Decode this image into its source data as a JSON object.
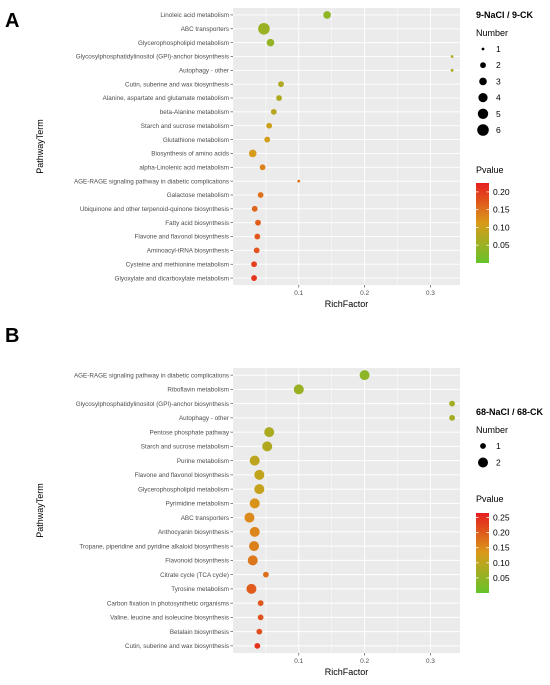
{
  "chart_data": [
    {
      "panel_label": "A",
      "type": "scatter",
      "title": "9-NaCl / 9-CK",
      "xlabel": "RichFactor",
      "ylabel": "PathwayTerm",
      "xticks": [
        0.1,
        0.2,
        0.3
      ],
      "xlim": [
        0.0,
        0.345
      ],
      "size_legend_title": "Number",
      "size_legend": [
        1,
        2,
        3,
        4,
        5,
        6
      ],
      "color_legend_title": "Pvalue",
      "color_ticks": [
        0.05,
        0.1,
        0.15,
        0.2
      ],
      "color_range": [
        0.0,
        0.225
      ],
      "grid": true,
      "legend_position": "right",
      "colors": {
        "low": "#66c32a",
        "mid": "#d99a1a",
        "high": "#e61e1e"
      },
      "points": [
        {
          "term": "Linoleic acid metabolism",
          "rich": 0.143,
          "number": 3,
          "pvalue": 0.04
        },
        {
          "term": "ABC transporters",
          "rich": 0.047,
          "number": 6,
          "pvalue": 0.05
        },
        {
          "term": "Glycerophospholipid metabolism",
          "rich": 0.057,
          "number": 3,
          "pvalue": 0.045
        },
        {
          "term": "Glycosylphosphatidylinositol (GPI)-anchor biosynthesis",
          "rich": 0.333,
          "number": 1,
          "pvalue": 0.07
        },
        {
          "term": "Autophagy - other",
          "rich": 0.333,
          "number": 1,
          "pvalue": 0.07
        },
        {
          "term": "Cutin, suberine and wax biosynthesis",
          "rich": 0.073,
          "number": 2,
          "pvalue": 0.07
        },
        {
          "term": "Alanine, aspartate and glutamate metabolism",
          "rich": 0.07,
          "number": 2,
          "pvalue": 0.072
        },
        {
          "term": "beta-Alanine metabolism",
          "rich": 0.062,
          "number": 2,
          "pvalue": 0.08
        },
        {
          "term": "Starch and sucrose metabolism",
          "rich": 0.055,
          "number": 2,
          "pvalue": 0.1
        },
        {
          "term": "Glutathione metabolism",
          "rich": 0.052,
          "number": 2,
          "pvalue": 0.105
        },
        {
          "term": "Biosynthesis of amino acids",
          "rich": 0.03,
          "number": 3,
          "pvalue": 0.11
        },
        {
          "term": "alpha-Linolenic acid metabolism",
          "rich": 0.045,
          "number": 2,
          "pvalue": 0.135
        },
        {
          "term": "AGE-RAGE signaling pathway in diabetic complications",
          "rich": 0.1,
          "number": 1,
          "pvalue": 0.15
        },
        {
          "term": "Galactose metabolism",
          "rich": 0.042,
          "number": 2,
          "pvalue": 0.15
        },
        {
          "term": "Ubiquinone and other terpenoid-quinone biosynthesis",
          "rich": 0.033,
          "number": 2,
          "pvalue": 0.16
        },
        {
          "term": "Fatty acid biosynthesis",
          "rich": 0.038,
          "number": 2,
          "pvalue": 0.17
        },
        {
          "term": "Flavone and flavonol biosynthesis",
          "rich": 0.037,
          "number": 2,
          "pvalue": 0.172
        },
        {
          "term": "Aminoacyl-tRNA biosynthesis",
          "rich": 0.036,
          "number": 2,
          "pvalue": 0.178
        },
        {
          "term": "Cysteine and methionine metabolism",
          "rich": 0.032,
          "number": 2,
          "pvalue": 0.195
        },
        {
          "term": "Glyoxylate and dicarboxylate metabolism",
          "rich": 0.032,
          "number": 2,
          "pvalue": 0.205
        }
      ]
    },
    {
      "panel_label": "B",
      "type": "scatter",
      "title": "68-NaCl / 68-CK",
      "xlabel": "RichFactor",
      "ylabel": "PathwayTerm",
      "xticks": [
        0.1,
        0.2,
        0.3
      ],
      "xlim": [
        0.0,
        0.345
      ],
      "size_legend_title": "Number",
      "size_legend": [
        1,
        2
      ],
      "color_legend_title": "Pvalue",
      "color_ticks": [
        0.05,
        0.1,
        0.15,
        0.2,
        0.25
      ],
      "color_range": [
        0.0,
        0.265
      ],
      "grid": true,
      "legend_position": "right",
      "colors": {
        "low": "#66c32a",
        "mid": "#d99a1a",
        "high": "#e61e1e"
      },
      "points": [
        {
          "term": "AGE-RAGE signaling pathway in diabetic complications",
          "rich": 0.2,
          "number": 2,
          "pvalue": 0.045
        },
        {
          "term": "Riboflavin metabolism",
          "rich": 0.1,
          "number": 2,
          "pvalue": 0.06
        },
        {
          "term": "Glycosylphosphatidylinositol (GPI)-anchor biosynthesis",
          "rich": 0.333,
          "number": 1,
          "pvalue": 0.07
        },
        {
          "term": "Autophagy - other",
          "rich": 0.333,
          "number": 1,
          "pvalue": 0.07
        },
        {
          "term": "Pentose phosphate pathway",
          "rich": 0.055,
          "number": 2,
          "pvalue": 0.08
        },
        {
          "term": "Starch and sucrose metabolism",
          "rich": 0.052,
          "number": 2,
          "pvalue": 0.085
        },
        {
          "term": "Purine metabolism",
          "rich": 0.033,
          "number": 2,
          "pvalue": 0.1
        },
        {
          "term": "Flavone and flavonol biosynthesis",
          "rich": 0.04,
          "number": 2,
          "pvalue": 0.105
        },
        {
          "term": "Glycerophospholipid metabolism",
          "rich": 0.04,
          "number": 2,
          "pvalue": 0.11
        },
        {
          "term": "Pyrimidine metabolism",
          "rich": 0.033,
          "number": 2,
          "pvalue": 0.14
        },
        {
          "term": "ABC transporters",
          "rich": 0.025,
          "number": 2,
          "pvalue": 0.15
        },
        {
          "term": "Anthocyanin biosynthesis",
          "rich": 0.033,
          "number": 2,
          "pvalue": 0.155
        },
        {
          "term": "Tropane, piperidine and pyridine alkaloid biosynthesis",
          "rich": 0.032,
          "number": 2,
          "pvalue": 0.16
        },
        {
          "term": "Flavonoid biosynthesis",
          "rich": 0.03,
          "number": 2,
          "pvalue": 0.17
        },
        {
          "term": "Citrate cycle (TCA cycle)",
          "rich": 0.05,
          "number": 1,
          "pvalue": 0.18
        },
        {
          "term": "Tyrosine metabolism",
          "rich": 0.028,
          "number": 2,
          "pvalue": 0.2
        },
        {
          "term": "Carbon fixation in photosynthetic organisms",
          "rich": 0.042,
          "number": 1,
          "pvalue": 0.205
        },
        {
          "term": "Valine, leucine and isoleucine biosynthesis",
          "rich": 0.042,
          "number": 1,
          "pvalue": 0.21
        },
        {
          "term": "Betalain biosynthesis",
          "rich": 0.04,
          "number": 1,
          "pvalue": 0.215
        },
        {
          "term": "Cutin, suberine and wax biosynthesis",
          "rich": 0.037,
          "number": 1,
          "pvalue": 0.245
        }
      ]
    }
  ]
}
